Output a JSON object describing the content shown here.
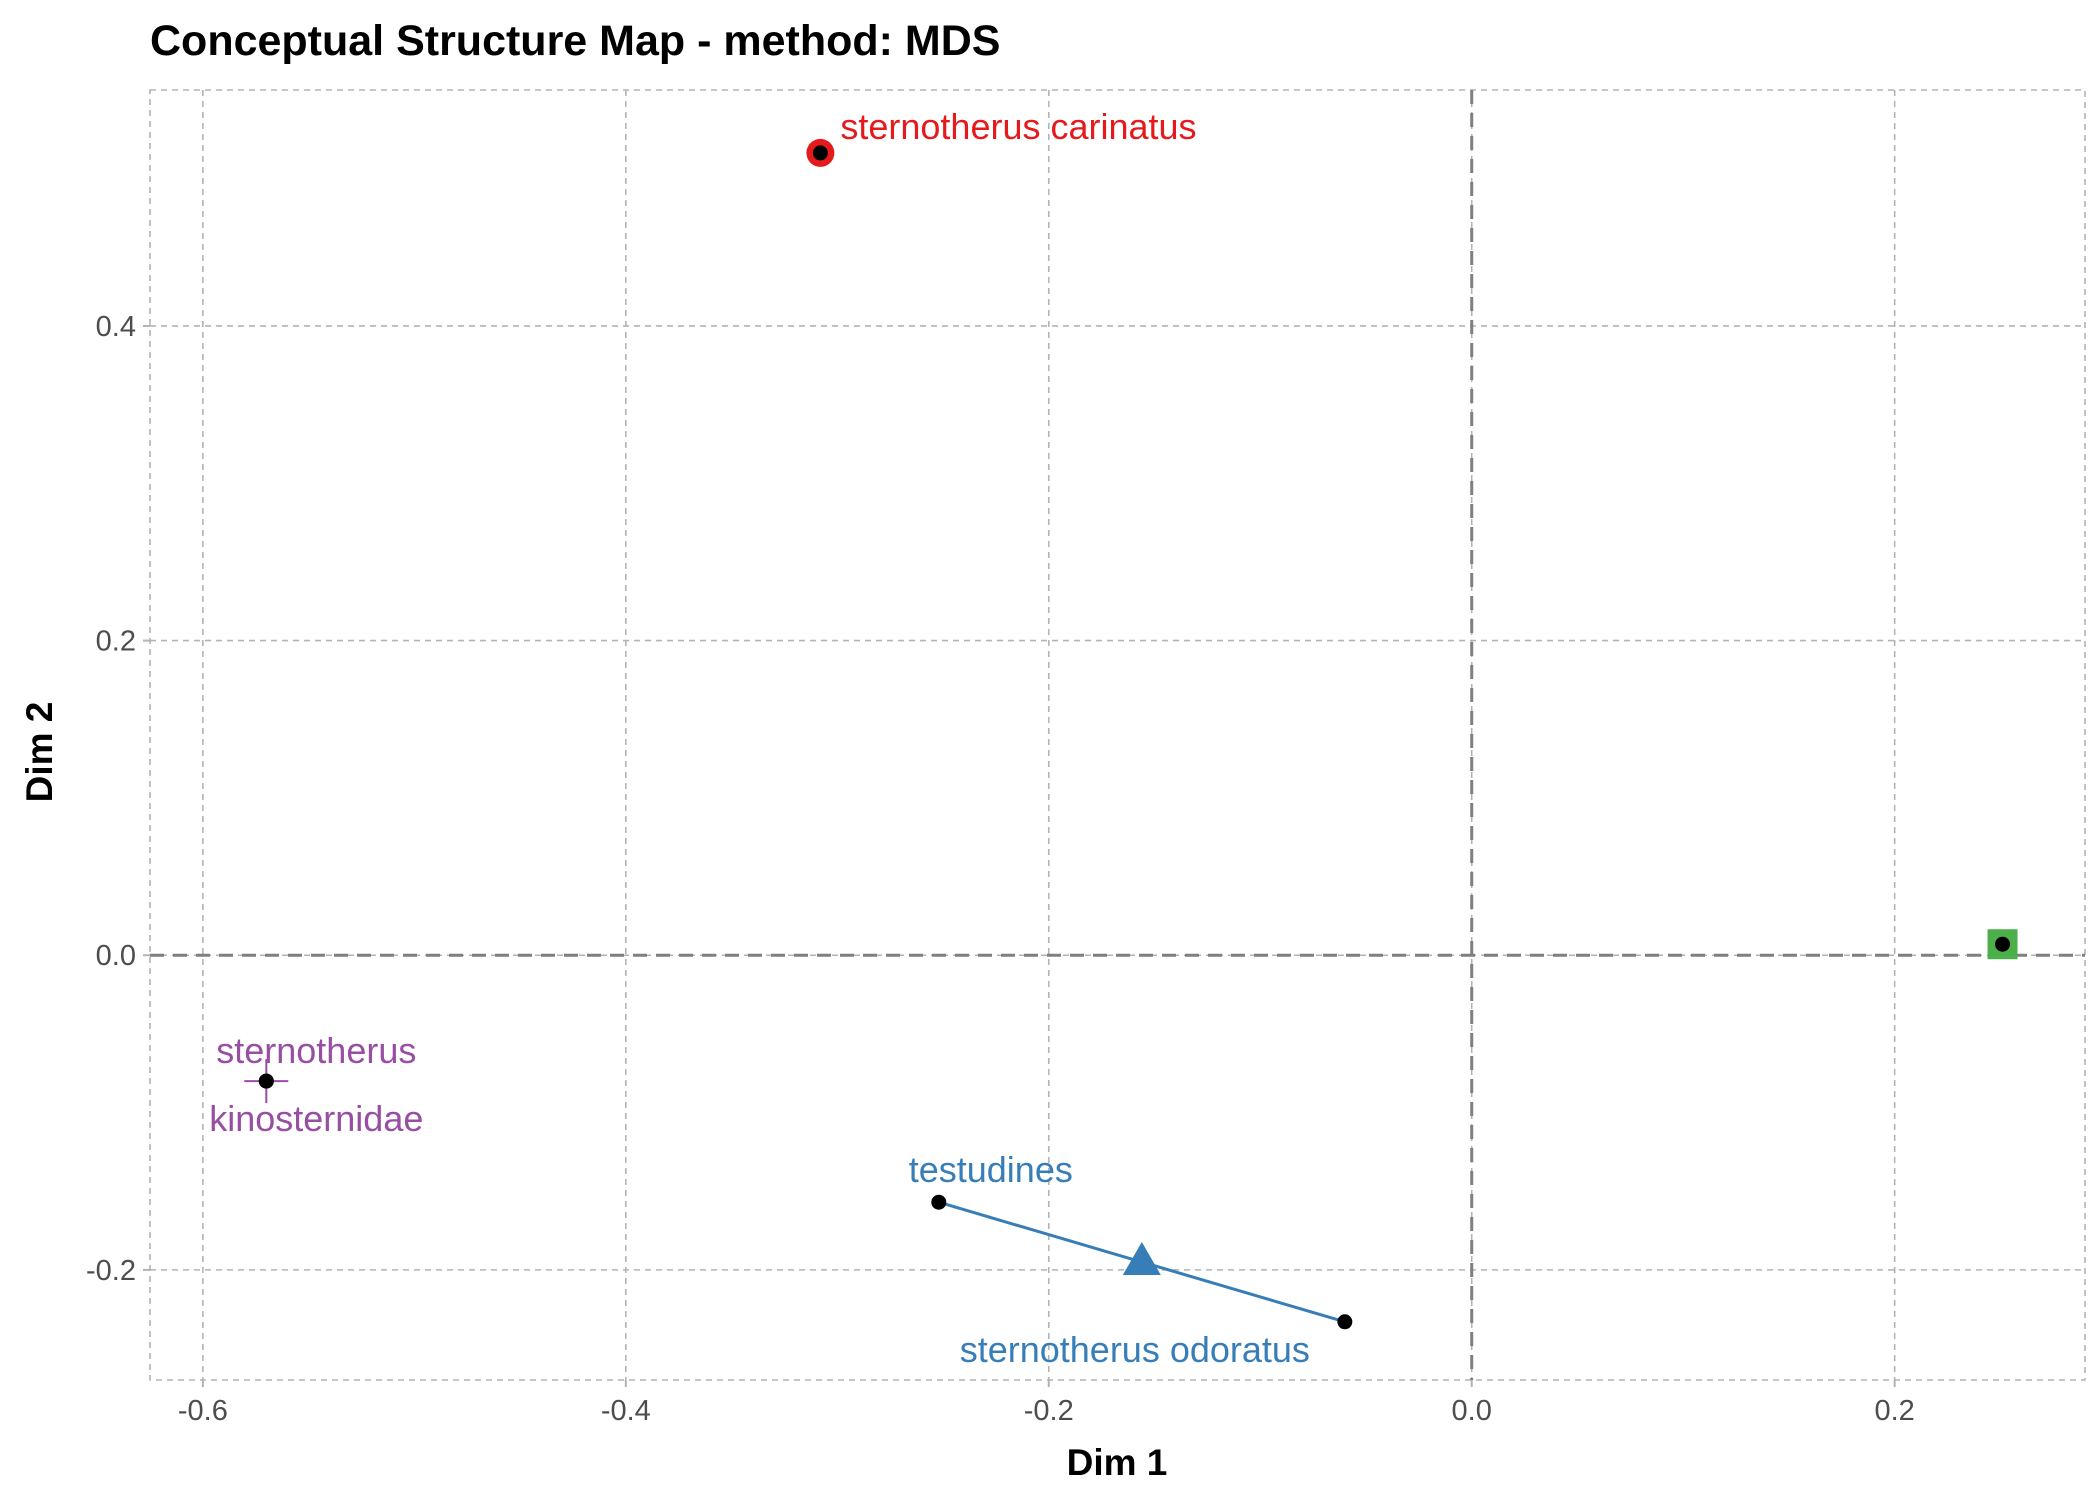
{
  "chart_data": {
    "type": "scatter",
    "title": "Conceptual Structure Map - method: MDS",
    "xlabel": "Dim 1",
    "ylabel": "Dim 2",
    "xlim": [
      -0.625,
      0.29
    ],
    "ylim": [
      -0.27,
      0.55
    ],
    "xticks": [
      -0.6,
      -0.4,
      -0.2,
      0.0,
      0.2
    ],
    "xtick_labels": [
      "-0.6",
      "-0.4",
      "-0.2",
      "0.0",
      "0.2"
    ],
    "yticks": [
      -0.2,
      0.0,
      0.2,
      0.4
    ],
    "ytick_labels": [
      "-0.2",
      "0.0",
      "0.2",
      "0.4"
    ],
    "grid": true,
    "reference_lines": {
      "x": 0.0,
      "y": 0.0,
      "style": "dashed"
    },
    "clusters": [
      {
        "id": 1,
        "color": "#e41a1c",
        "centroid_shape": "circle",
        "centroid": [
          -0.308,
          0.51
        ],
        "points": [
          {
            "label": "sternotherus carinatus",
            "x": -0.308,
            "y": 0.51
          }
        ]
      },
      {
        "id": 2,
        "color": "#377eb8",
        "centroid_shape": "triangle",
        "centroid": [
          -0.156,
          -0.195
        ],
        "points": [
          {
            "label": "testudines",
            "x": -0.252,
            "y": -0.157
          },
          {
            "label": "sternotherus odoratus",
            "x": -0.06,
            "y": -0.233
          }
        ]
      },
      {
        "id": 3,
        "color": "#4daf4a",
        "centroid_shape": "square",
        "centroid": [
          0.251,
          0.007
        ],
        "points": [
          {
            "label": "",
            "x": 0.251,
            "y": 0.007
          }
        ]
      },
      {
        "id": 4,
        "color": "#984ea3",
        "centroid_shape": "cross",
        "centroid": [
          -0.57,
          -0.08
        ],
        "points": [
          {
            "label": "sternotherus",
            "x": -0.57,
            "y": -0.08
          },
          {
            "label": "kinosternidae",
            "x": -0.57,
            "y": -0.08
          }
        ]
      }
    ]
  }
}
